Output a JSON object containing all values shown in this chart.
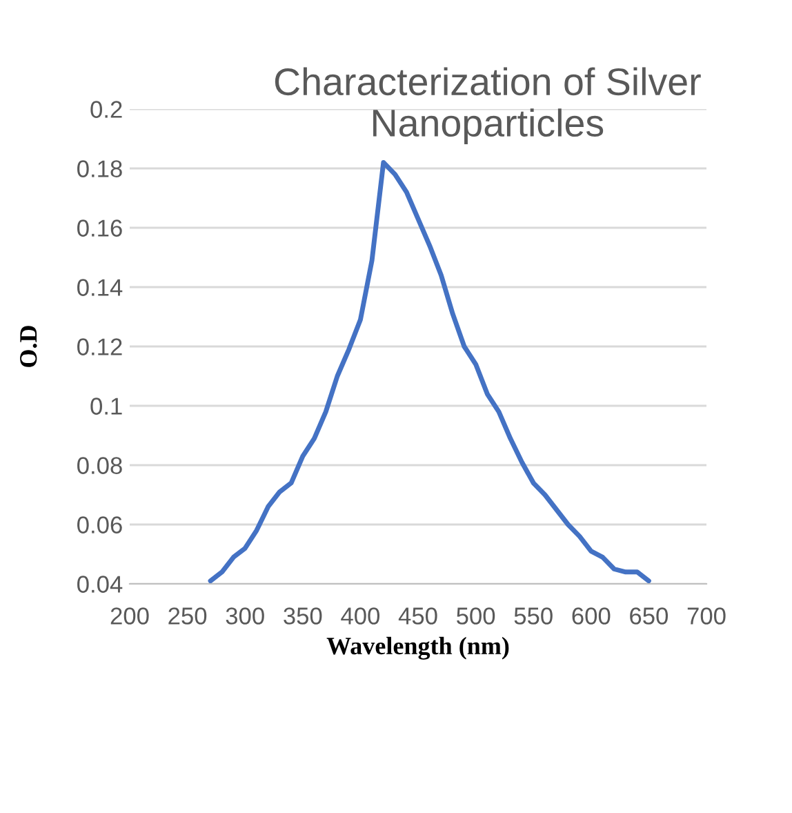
{
  "chart_data": {
    "type": "line",
    "title": "Characterization of Silver Nanoparticles",
    "xlabel": "Wavelength (nm)",
    "ylabel": "O.D",
    "x": [
      270,
      280,
      290,
      300,
      310,
      320,
      330,
      340,
      350,
      360,
      370,
      380,
      390,
      400,
      410,
      420,
      430,
      440,
      450,
      460,
      470,
      480,
      490,
      500,
      510,
      520,
      530,
      540,
      550,
      560,
      570,
      580,
      590,
      600,
      610,
      620,
      630,
      640,
      650
    ],
    "series": [
      {
        "color": "#4472c4",
        "values": [
          0.041,
          0.044,
          0.049,
          0.052,
          0.058,
          0.066,
          0.071,
          0.074,
          0.083,
          0.089,
          0.098,
          0.11,
          0.119,
          0.129,
          0.149,
          0.182,
          0.178,
          0.172,
          0.163,
          0.154,
          0.144,
          0.131,
          0.12,
          0.114,
          0.104,
          0.098,
          0.089,
          0.081,
          0.074,
          0.07,
          0.065,
          0.06,
          0.056,
          0.051,
          0.049,
          0.045,
          0.044,
          0.044,
          0.041
        ]
      }
    ],
    "xlim": [
      200,
      700
    ],
    "xticks": [
      200,
      250,
      300,
      350,
      400,
      450,
      500,
      550,
      600,
      650,
      700
    ],
    "ylim": [
      0.04,
      0.2
    ],
    "yticks": [
      {
        "value": 0.04,
        "label": "0.04"
      },
      {
        "value": 0.06,
        "label": "0.06"
      },
      {
        "value": 0.08,
        "label": "0.08"
      },
      {
        "value": 0.1,
        "label": "0.1"
      },
      {
        "value": 0.12,
        "label": "0.12"
      },
      {
        "value": 0.14,
        "label": "0.14"
      },
      {
        "value": 0.16,
        "label": "0.16"
      },
      {
        "value": 0.18,
        "label": "0.18"
      },
      {
        "value": 0.2,
        "label": "0.2"
      }
    ],
    "grid": "y",
    "legend": false,
    "marker": "none",
    "line_style": "solid"
  }
}
